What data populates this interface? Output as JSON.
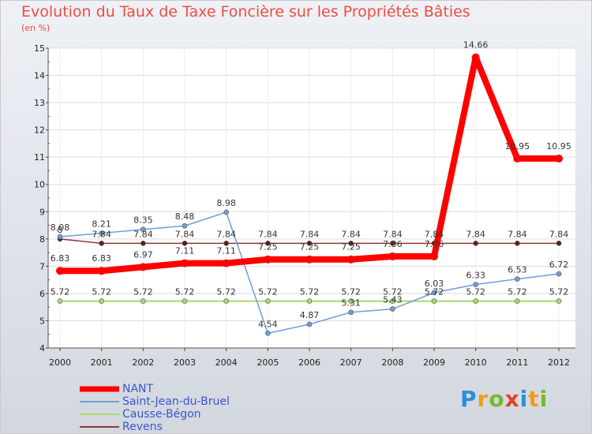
{
  "title": "Evolution du Taux de Taxe Foncière sur les Propriétés Bâties",
  "subtitle": "(en %)",
  "logo": {
    "letters": [
      "P",
      "r",
      "o",
      "x",
      "i",
      "t",
      "i"
    ],
    "colors": [
      "#2b8fd8",
      "#f39a1e",
      "#77b82a",
      "#e2432c",
      "#2b8fd8",
      "#f39a1e",
      "#77b82a"
    ]
  },
  "chart_data": {
    "type": "line",
    "title": "Evolution du Taux de Taxe Foncière sur les Propriétés Bâties",
    "ylabel": "(en %)",
    "xlabel": "",
    "x": [
      "2000",
      "2001",
      "2002",
      "2003",
      "2004",
      "2005",
      "2006",
      "2007",
      "2008",
      "2009",
      "2010",
      "2011",
      "2012"
    ],
    "ylim": [
      4,
      15
    ],
    "yticks": [
      "4",
      "5",
      "6",
      "7",
      "8",
      "9",
      "10",
      "11",
      "12",
      "13",
      "14",
      "15"
    ],
    "series": [
      {
        "name": "NANT",
        "color": "#ff0000",
        "values": [
          6.83,
          6.83,
          6.97,
          7.11,
          7.11,
          7.25,
          7.25,
          7.25,
          7.36,
          7.36,
          14.66,
          10.95,
          10.95
        ],
        "labels": [
          "6.83",
          "6.83",
          "6.97",
          "7.11",
          "7.11",
          "7.25",
          "7.25",
          "7.25",
          "7.36",
          "7.36",
          "14.66",
          "10.95",
          "10.95"
        ]
      },
      {
        "name": "Saint-Jean-du-Bruel",
        "color": "#6b9fd8",
        "values": [
          8.08,
          8.21,
          8.35,
          8.48,
          8.98,
          4.54,
          4.87,
          5.31,
          5.43,
          6.03,
          6.33,
          6.53,
          6.72
        ],
        "labels": [
          "8.08",
          "8.21",
          "8.35",
          "8.48",
          "8.98",
          "4.54",
          "4.87",
          "5.31",
          "5.43",
          "6.03",
          "6.33",
          "6.53",
          "6.72"
        ]
      },
      {
        "name": "Causse-Bégon",
        "color": "#a3dc6a",
        "values": [
          5.72,
          5.72,
          5.72,
          5.72,
          5.72,
          5.72,
          5.72,
          5.72,
          5.72,
          5.72,
          5.72,
          5.72,
          5.72
        ],
        "labels": [
          "5.72",
          "5.72",
          "5.72",
          "5.72",
          "5.72",
          "5.72",
          "5.72",
          "5.72",
          "5.72",
          "5.72",
          "5.72",
          "5.72",
          "5.72"
        ]
      },
      {
        "name": "Revens",
        "color": "#8a3a3a",
        "values": [
          8.0,
          7.84,
          7.84,
          7.84,
          7.84,
          7.84,
          7.84,
          7.84,
          7.84,
          7.84,
          7.84,
          7.84,
          7.84
        ],
        "labels": [
          "8",
          "7.84",
          "7.84",
          "7.84",
          "7.84",
          "7.84",
          "7.84",
          "7.84",
          "7.84",
          "7.84",
          "7.84",
          "7.84",
          "7.84"
        ]
      }
    ]
  }
}
